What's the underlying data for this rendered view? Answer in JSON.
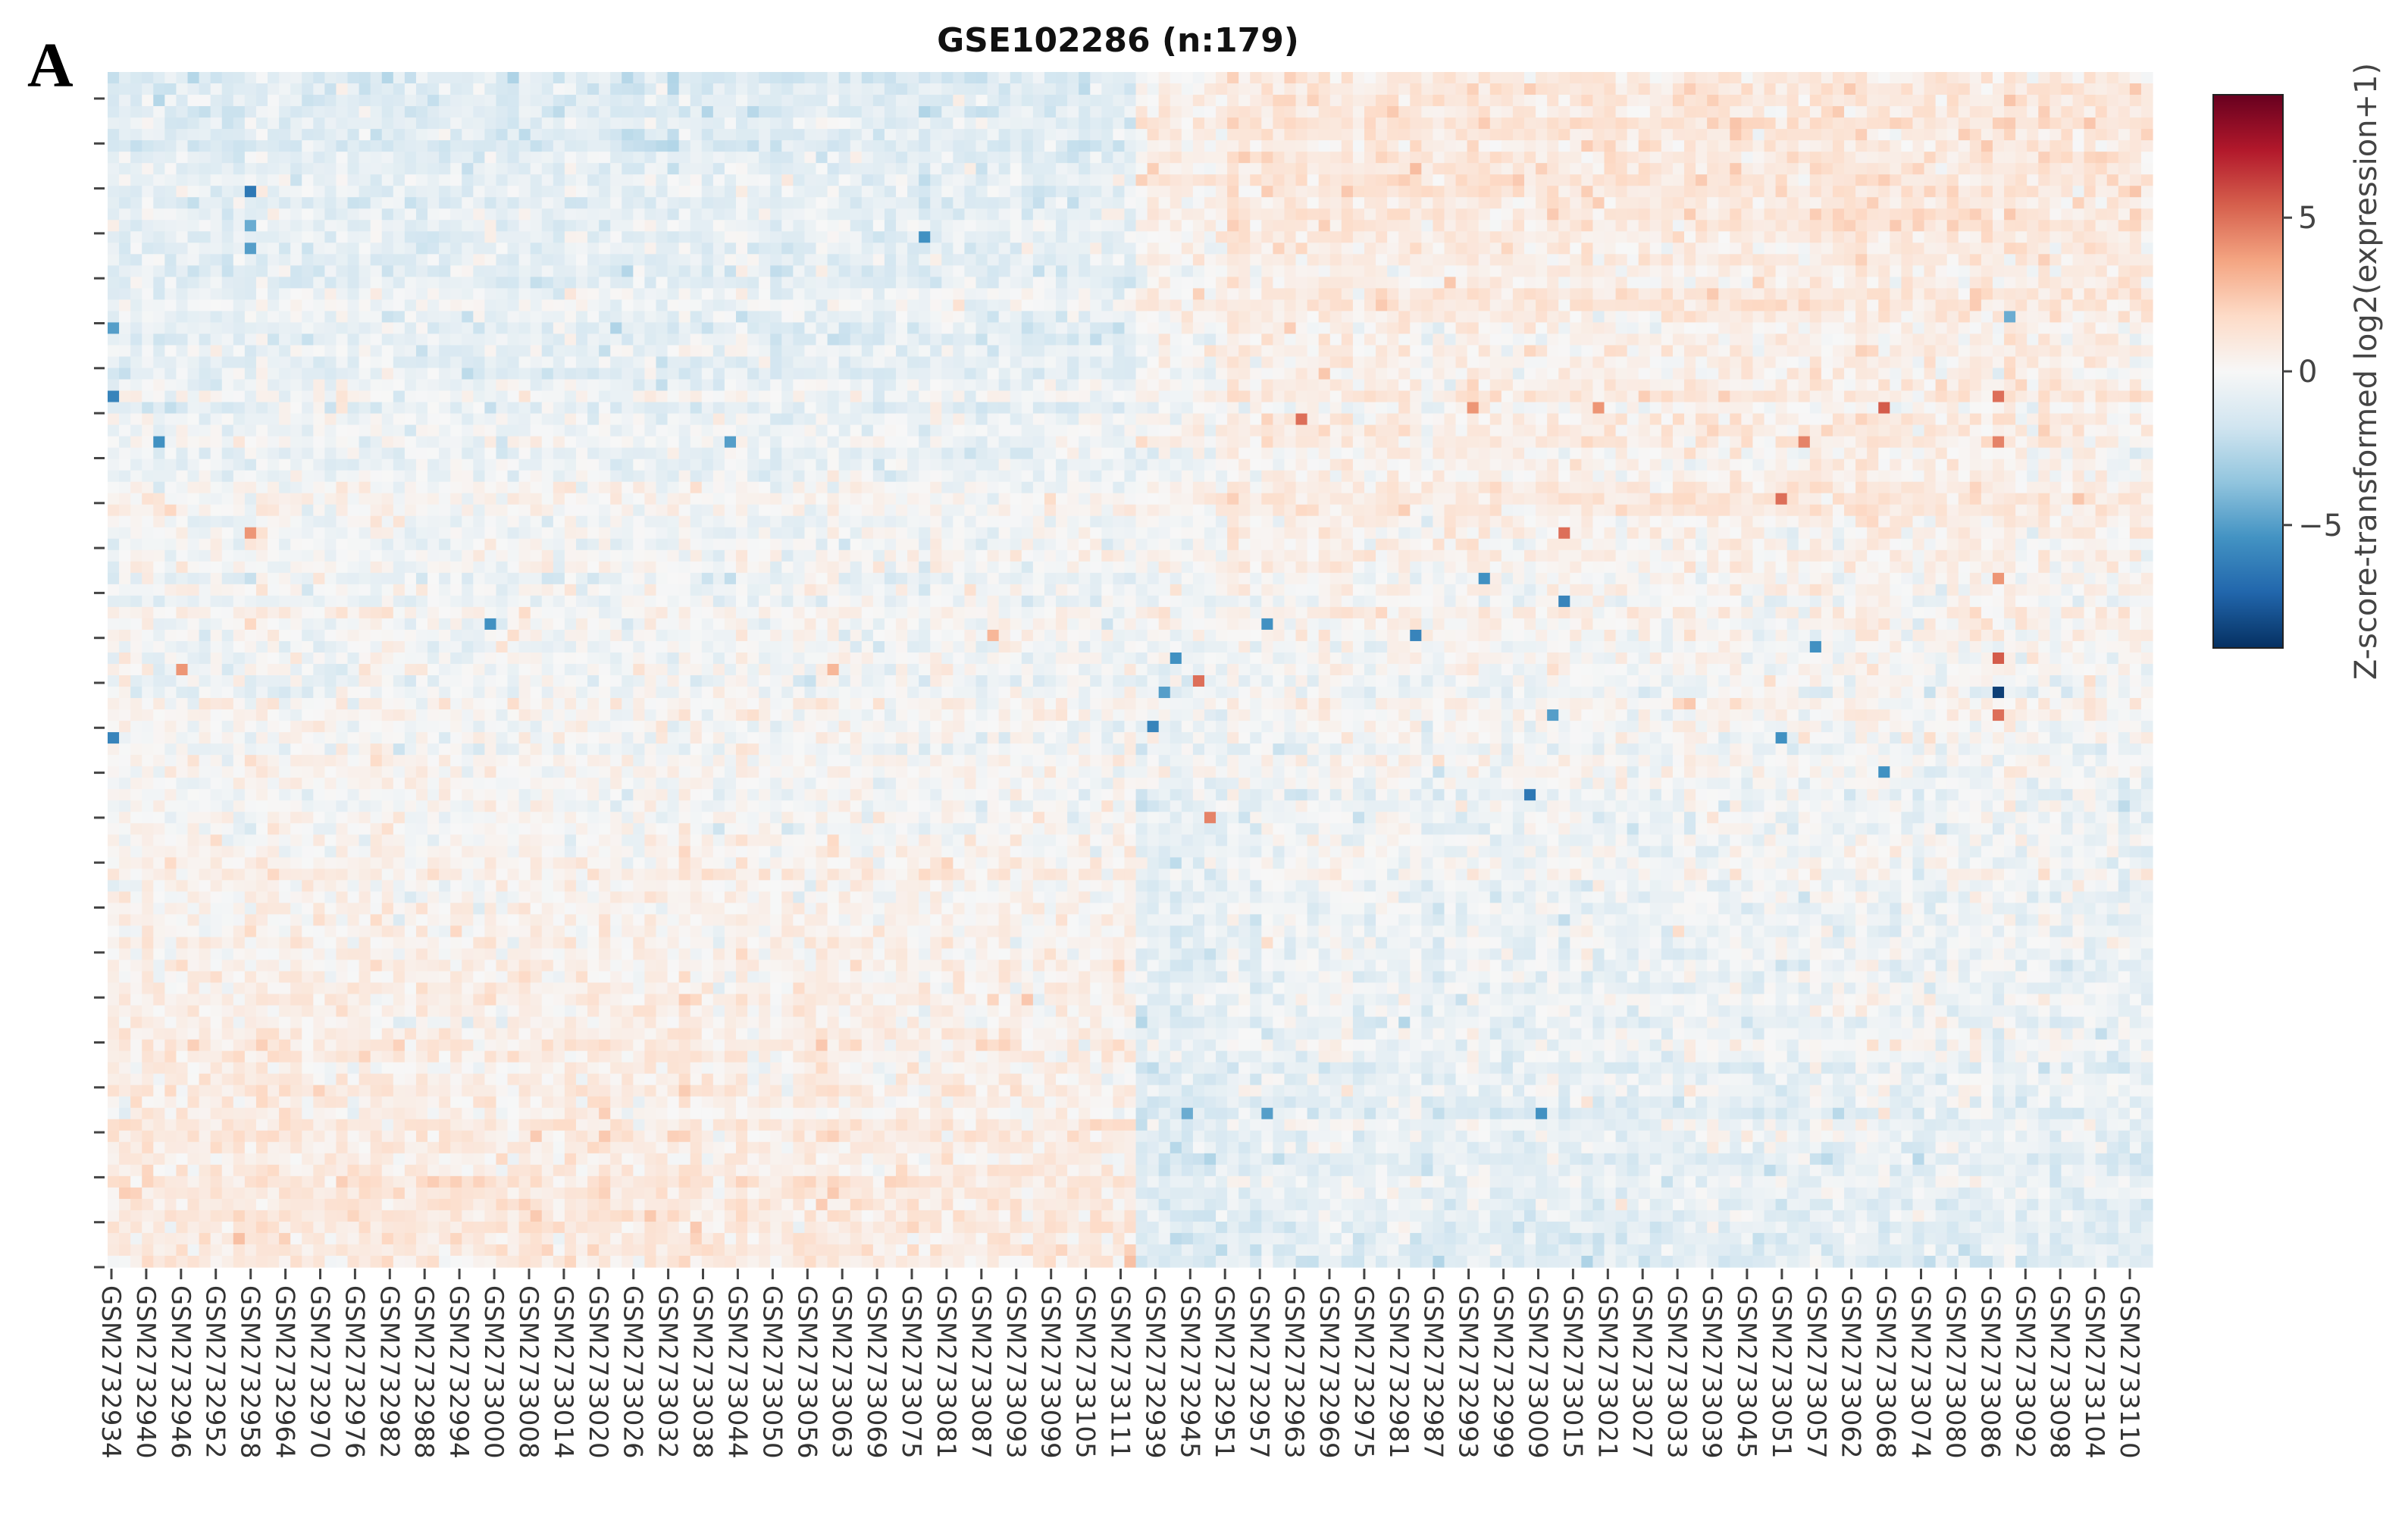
{
  "panel_label": "A",
  "chart_data": {
    "type": "heatmap",
    "title": "GSE102286 (n:179)",
    "xlabel": "",
    "ylabel": "",
    "n_samples": 179,
    "n_rows": 105,
    "x_tick_labels": [
      "GSM2732934",
      "GSM2732940",
      "GSM2732946",
      "GSM2732952",
      "GSM2732958",
      "GSM2732964",
      "GSM2732970",
      "GSM2732976",
      "GSM2732982",
      "GSM2732988",
      "GSM2732994",
      "GSM2733000",
      "GSM2733008",
      "GSM2733014",
      "GSM2733020",
      "GSM2733026",
      "GSM2733032",
      "GSM2733038",
      "GSM2733044",
      "GSM2733050",
      "GSM2733056",
      "GSM2733063",
      "GSM2733069",
      "GSM2733075",
      "GSM2733081",
      "GSM2733087",
      "GSM2733093",
      "GSM2733099",
      "GSM2733105",
      "GSM2733111",
      "GSM2732939",
      "GSM2732945",
      "GSM2732951",
      "GSM2732957",
      "GSM2732963",
      "GSM2732969",
      "GSM2732975",
      "GSM2732981",
      "GSM2732987",
      "GSM2732993",
      "GSM2732999",
      "GSM2733009",
      "GSM2733015",
      "GSM2733021",
      "GSM2733027",
      "GSM2733033",
      "GSM2733039",
      "GSM2733045",
      "GSM2733051",
      "GSM2733057",
      "GSM2733062",
      "GSM2733068",
      "GSM2733074",
      "GSM2733080",
      "GSM2733086",
      "GSM2733092",
      "GSM2733098",
      "GSM2733104",
      "GSM2733110"
    ],
    "n_y_ticks": 27,
    "group_split_sample": 90,
    "colorbar": {
      "label": "Z-score-transformed log2(expression+1)",
      "min": -9,
      "max": 9,
      "ticks": [
        5,
        0,
        -5
      ],
      "tick_labels": [
        "5",
        "0",
        "−5"
      ],
      "colors": [
        "#053061",
        "#2166ac",
        "#4393c3",
        "#92c5de",
        "#d1e5f0",
        "#f7f7f7",
        "#fddbc7",
        "#f4a582",
        "#d6604d",
        "#b2182b",
        "#67001f"
      ]
    },
    "highlight_cells": [
      {
        "sample": 12,
        "row": 10,
        "value": -6.5
      },
      {
        "sample": 12,
        "row": 13,
        "value": -4.5
      },
      {
        "sample": 12,
        "row": 15,
        "value": -5
      },
      {
        "sample": 71,
        "row": 14,
        "value": -5.5
      },
      {
        "sample": 0,
        "row": 22,
        "value": -5
      },
      {
        "sample": 0,
        "row": 28,
        "value": -6
      },
      {
        "sample": 4,
        "row": 32,
        "value": -5.5
      },
      {
        "sample": 54,
        "row": 32,
        "value": -5
      },
      {
        "sample": 12,
        "row": 40,
        "value": 4
      },
      {
        "sample": 33,
        "row": 48,
        "value": -5.5
      },
      {
        "sample": 0,
        "row": 58,
        "value": -6
      },
      {
        "sample": 6,
        "row": 52,
        "value": 4
      },
      {
        "sample": 92,
        "row": 54,
        "value": -5
      },
      {
        "sample": 101,
        "row": 48,
        "value": -5.5
      },
      {
        "sample": 114,
        "row": 49,
        "value": -6
      },
      {
        "sample": 91,
        "row": 57,
        "value": -6
      },
      {
        "sample": 126,
        "row": 56,
        "value": -5
      },
      {
        "sample": 146,
        "row": 58,
        "value": -5.5
      },
      {
        "sample": 124,
        "row": 63,
        "value": -6.5
      },
      {
        "sample": 120,
        "row": 44,
        "value": -5.5
      },
      {
        "sample": 127,
        "row": 46,
        "value": -6
      },
      {
        "sample": 93,
        "row": 51,
        "value": -5.5
      },
      {
        "sample": 95,
        "row": 53,
        "value": 5
      },
      {
        "sample": 104,
        "row": 30,
        "value": 5
      },
      {
        "sample": 119,
        "row": 29,
        "value": 4
      },
      {
        "sample": 155,
        "row": 29,
        "value": 5.5
      },
      {
        "sample": 148,
        "row": 32,
        "value": 4.5
      },
      {
        "sample": 146,
        "row": 37,
        "value": 5
      },
      {
        "sample": 127,
        "row": 40,
        "value": 5
      },
      {
        "sample": 96,
        "row": 65,
        "value": 4.5
      },
      {
        "sample": 165,
        "row": 44,
        "value": 4
      },
      {
        "sample": 165,
        "row": 51,
        "value": 5.5
      },
      {
        "sample": 165,
        "row": 54,
        "value": -8.5
      },
      {
        "sample": 165,
        "row": 56,
        "value": 5
      },
      {
        "sample": 165,
        "row": 28,
        "value": 5
      },
      {
        "sample": 165,
        "row": 32,
        "value": 4.5
      },
      {
        "sample": 166,
        "row": 21,
        "value": -4.5
      },
      {
        "sample": 149,
        "row": 50,
        "value": -5.5
      },
      {
        "sample": 155,
        "row": 61,
        "value": -5.5
      },
      {
        "sample": 101,
        "row": 91,
        "value": -5
      },
      {
        "sample": 125,
        "row": 91,
        "value": -5.5
      },
      {
        "sample": 94,
        "row": 91,
        "value": -4.5
      },
      {
        "sample": 63,
        "row": 52,
        "value": 3
      },
      {
        "sample": 77,
        "row": 49,
        "value": 3
      },
      {
        "sample": 130,
        "row": 29,
        "value": 4
      }
    ]
  }
}
